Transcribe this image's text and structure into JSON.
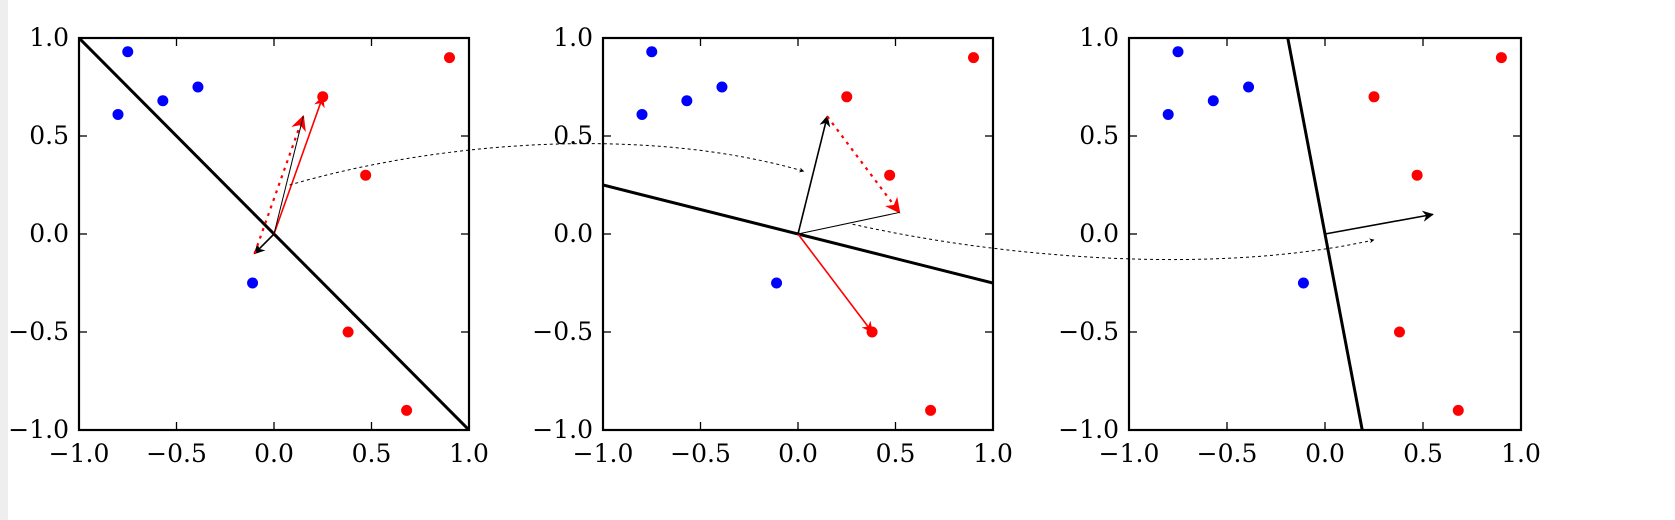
{
  "chart_data": [
    {
      "type": "scatter",
      "xlim": [
        -1.0,
        1.0
      ],
      "ylim": [
        -1.0,
        1.0
      ],
      "x_ticks": [
        "−1.0",
        "−0.5",
        "0.0",
        "0.5",
        "1.0"
      ],
      "y_ticks": [
        "1.0",
        "0.5",
        "0.0",
        "−0.5",
        "−1.0"
      ],
      "grid": false,
      "series": [
        {
          "color": "#0000ff",
          "points": [
            [
              -0.8,
              0.61
            ],
            [
              -0.75,
              0.93
            ],
            [
              -0.57,
              0.68
            ],
            [
              -0.39,
              0.75
            ],
            [
              -0.11,
              -0.25
            ]
          ]
        },
        {
          "color": "#ff0000",
          "points": [
            [
              0.25,
              0.7
            ],
            [
              0.47,
              0.3
            ],
            [
              0.38,
              -0.5
            ],
            [
              0.68,
              -0.9
            ],
            [
              0.9,
              0.9
            ]
          ]
        }
      ],
      "decision_line": [
        [
          -1.0,
          1.0
        ],
        [
          1.0,
          -1.0
        ]
      ],
      "vectors": [
        {
          "from": [
            0,
            0
          ],
          "to": [
            -0.1,
            -0.1
          ],
          "color": "#000000",
          "style": "solid"
        },
        {
          "from": [
            0,
            0
          ],
          "to": [
            0.25,
            0.7
          ],
          "color": "#ff0000",
          "style": "solid"
        },
        {
          "from": [
            -0.1,
            -0.1
          ],
          "to": [
            0.15,
            0.6
          ],
          "color": "#ff0000",
          "style": "dotted"
        },
        {
          "from": [
            0,
            0
          ],
          "to": [
            0.15,
            0.6
          ],
          "color": "#000000",
          "style": "thin"
        }
      ]
    },
    {
      "type": "scatter",
      "xlim": [
        -1.0,
        1.0
      ],
      "ylim": [
        -1.0,
        1.0
      ],
      "x_ticks": [
        "−1.0",
        "−0.5",
        "0.0",
        "0.5",
        "1.0"
      ],
      "y_ticks": [
        "1.0",
        "0.5",
        "0.0",
        "−0.5",
        "−1.0"
      ],
      "grid": false,
      "series": [
        {
          "color": "#0000ff",
          "points": [
            [
              -0.8,
              0.61
            ],
            [
              -0.75,
              0.93
            ],
            [
              -0.57,
              0.68
            ],
            [
              -0.39,
              0.75
            ],
            [
              -0.11,
              -0.25
            ]
          ]
        },
        {
          "color": "#ff0000",
          "points": [
            [
              0.25,
              0.7
            ],
            [
              0.47,
              0.3
            ],
            [
              0.38,
              -0.5
            ],
            [
              0.68,
              -0.9
            ],
            [
              0.9,
              0.9
            ]
          ]
        }
      ],
      "decision_line": [
        [
          -1.0,
          0.25
        ],
        [
          1.0,
          -0.25
        ]
      ],
      "vectors": [
        {
          "from": [
            0,
            0
          ],
          "to": [
            0.15,
            0.6
          ],
          "color": "#000000",
          "style": "solid"
        },
        {
          "from": [
            0,
            0
          ],
          "to": [
            0.38,
            -0.5
          ],
          "color": "#ff0000",
          "style": "solid"
        },
        {
          "from": [
            0.15,
            0.6
          ],
          "to": [
            0.52,
            0.11
          ],
          "color": "#ff0000",
          "style": "dotted"
        },
        {
          "from": [
            0,
            0
          ],
          "to": [
            0.52,
            0.11
          ],
          "color": "#000000",
          "style": "thin"
        }
      ]
    },
    {
      "type": "scatter",
      "xlim": [
        -1.0,
        1.0
      ],
      "ylim": [
        -1.0,
        1.0
      ],
      "x_ticks": [
        "−1.0",
        "−0.5",
        "0.0",
        "0.5",
        "1.0"
      ],
      "y_ticks": [
        "1.0",
        "0.5",
        "0.0",
        "−0.5",
        "−1.0"
      ],
      "grid": false,
      "series": [
        {
          "color": "#0000ff",
          "points": [
            [
              -0.8,
              0.61
            ],
            [
              -0.75,
              0.93
            ],
            [
              -0.57,
              0.68
            ],
            [
              -0.39,
              0.75
            ],
            [
              -0.11,
              -0.25
            ]
          ]
        },
        {
          "color": "#ff0000",
          "points": [
            [
              0.25,
              0.7
            ],
            [
              0.47,
              0.3
            ],
            [
              0.38,
              -0.5
            ],
            [
              0.68,
              -0.9
            ],
            [
              0.9,
              0.9
            ]
          ]
        }
      ],
      "decision_line": [
        [
          -0.19,
          1.0
        ],
        [
          0.19,
          -1.0
        ]
      ],
      "vectors": [
        {
          "from": [
            0,
            0
          ],
          "to": [
            0.55,
            0.1
          ],
          "color": "#000000",
          "style": "solid"
        }
      ]
    }
  ],
  "connectors": [
    {
      "from_plot": 0,
      "from": [
        0.08,
        0.25
      ],
      "to_plot": 1,
      "to": [
        0.03,
        0.32
      ]
    },
    {
      "from_plot": 1,
      "from": [
        0.28,
        0.05
      ],
      "to_plot": 2,
      "to": [
        0.25,
        -0.03
      ]
    }
  ]
}
